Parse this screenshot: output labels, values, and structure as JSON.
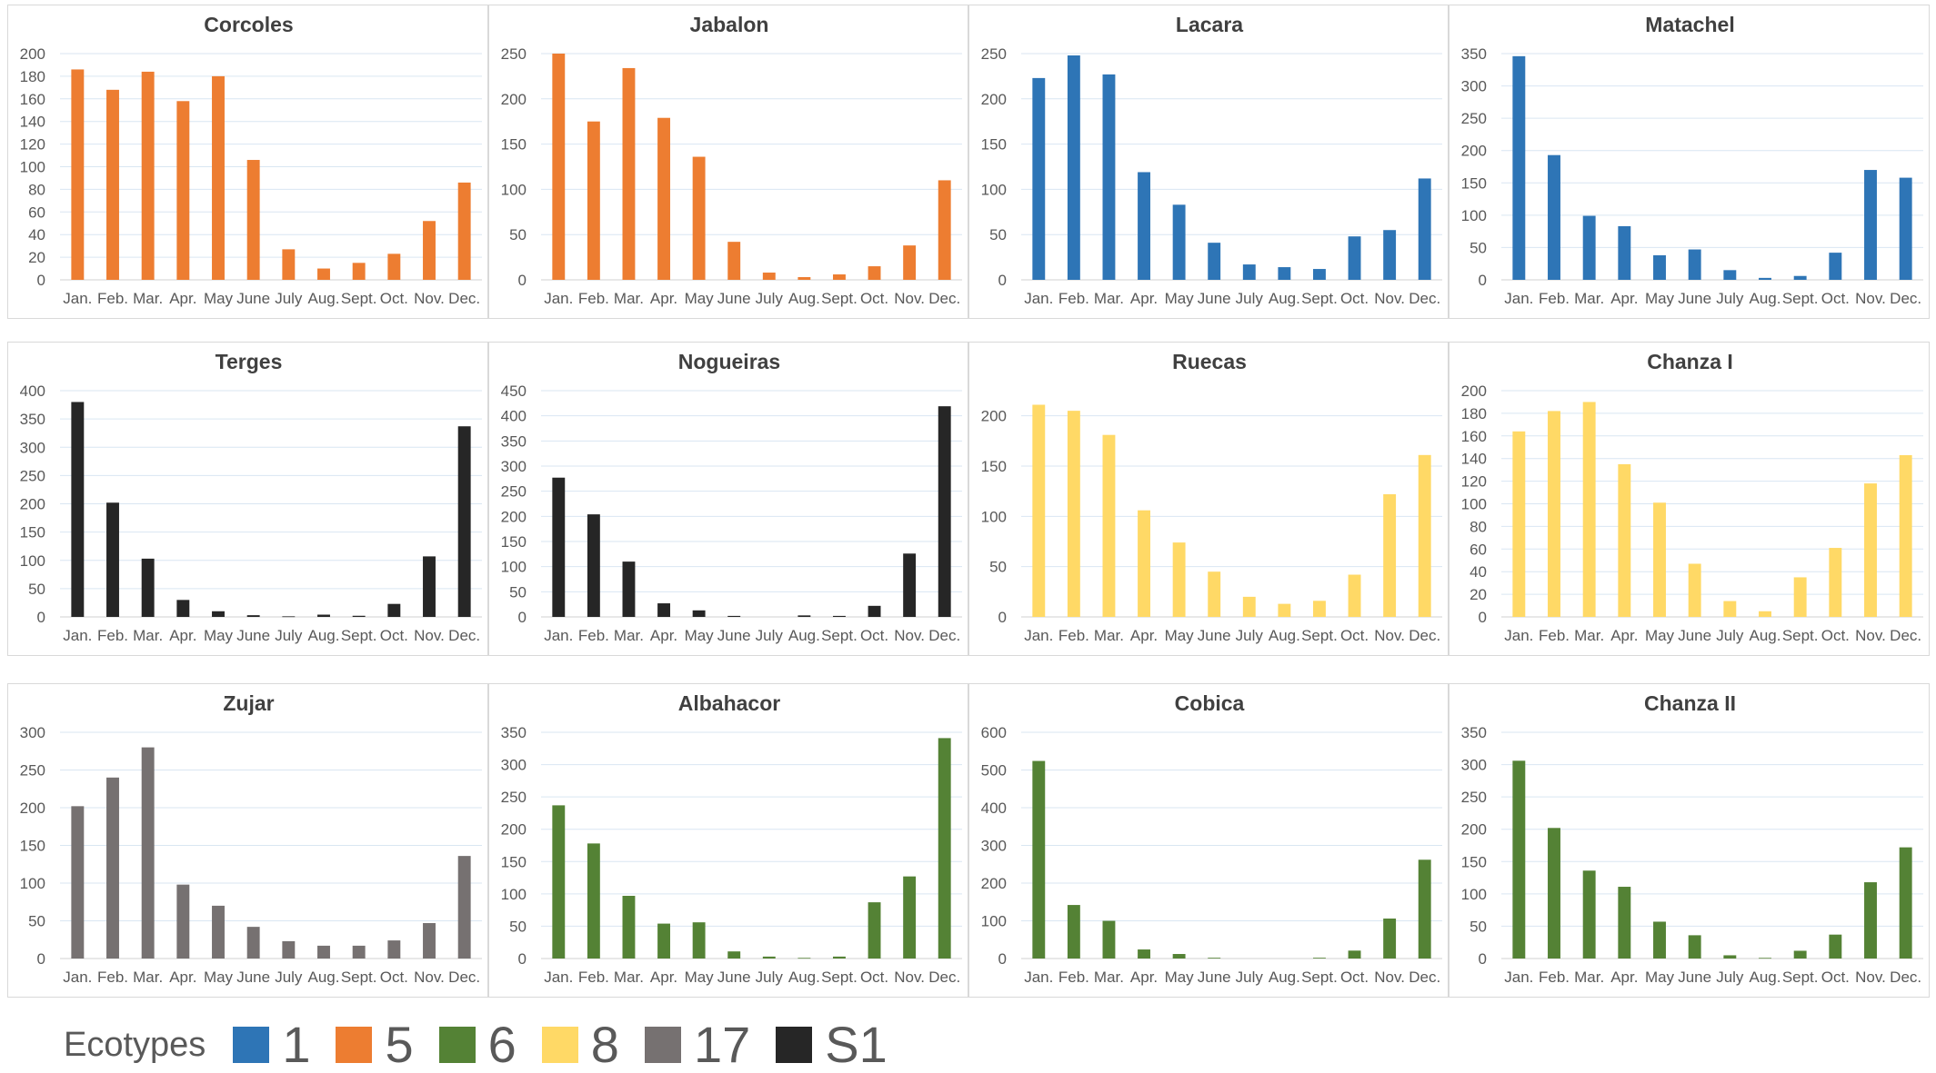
{
  "legend": {
    "title": "Ecotypes",
    "items": [
      {
        "label": "1",
        "color": "#2e75b6"
      },
      {
        "label": "5",
        "color": "#ed7d31"
      },
      {
        "label": "6",
        "color": "#548235"
      },
      {
        "label": "8",
        "color": "#ffd966"
      },
      {
        "label": "17",
        "color": "#767171"
      },
      {
        "label": "S1",
        "color": "#262626"
      }
    ]
  },
  "chart_data": [
    {
      "type": "bar",
      "title": "Corcoles",
      "color": "#ed7d31",
      "categories": [
        "Jan.",
        "Feb.",
        "Mar.",
        "Apr.",
        "May",
        "June",
        "July",
        "Aug.",
        "Sept.",
        "Oct.",
        "Nov.",
        "Dec."
      ],
      "values": [
        186,
        168,
        184,
        158,
        180,
        106,
        27,
        10,
        15,
        23,
        52,
        86
      ],
      "ylim": [
        0,
        200
      ],
      "yticks": [
        0,
        20,
        40,
        60,
        80,
        100,
        120,
        140,
        160,
        180,
        200
      ],
      "grid": true
    },
    {
      "type": "bar",
      "title": "Jabalon",
      "color": "#ed7d31",
      "categories": [
        "Jan.",
        "Feb.",
        "Mar.",
        "Apr.",
        "May",
        "June",
        "July",
        "Aug.",
        "Sept.",
        "Oct.",
        "Nov.",
        "Dec."
      ],
      "values": [
        250,
        175,
        234,
        179,
        136,
        42,
        8,
        3,
        6,
        15,
        38,
        110
      ],
      "ylim": [
        0,
        250
      ],
      "yticks": [
        0,
        50,
        100,
        150,
        200,
        250
      ],
      "grid": true
    },
    {
      "type": "bar",
      "title": "Lacara",
      "color": "#2e75b6",
      "categories": [
        "Jan.",
        "Feb.",
        "Mar.",
        "Apr.",
        "May",
        "June",
        "July",
        "Aug.",
        "Sept.",
        "Oct.",
        "Nov.",
        "Dec."
      ],
      "values": [
        223,
        248,
        227,
        119,
        83,
        41,
        17,
        14,
        12,
        48,
        55,
        112
      ],
      "ylim": [
        0,
        250
      ],
      "yticks": [
        0,
        50,
        100,
        150,
        200,
        250
      ],
      "grid": true
    },
    {
      "type": "bar",
      "title": "Matachel",
      "color": "#2e75b6",
      "categories": [
        "Jan.",
        "Feb.",
        "Mar.",
        "Apr.",
        "May",
        "June",
        "July",
        "Aug.",
        "Sept.",
        "Oct.",
        "Nov.",
        "Dec."
      ],
      "values": [
        346,
        193,
        99,
        83,
        38,
        47,
        15,
        3,
        6,
        42,
        170,
        158
      ],
      "ylim": [
        0,
        350
      ],
      "yticks": [
        0,
        50,
        100,
        150,
        200,
        250,
        300,
        350
      ],
      "grid": true
    },
    {
      "type": "bar",
      "title": "Terges",
      "color": "#262626",
      "categories": [
        "Jan.",
        "Feb.",
        "Mar.",
        "Apr.",
        "May",
        "June",
        "July",
        "Aug.",
        "Sept.",
        "Oct.",
        "Nov.",
        "Dec."
      ],
      "values": [
        380,
        202,
        103,
        30,
        10,
        3,
        1,
        4,
        2,
        23,
        107,
        337
      ],
      "ylim": [
        0,
        400
      ],
      "yticks": [
        0,
        50,
        100,
        150,
        200,
        250,
        300,
        350,
        400
      ],
      "grid": true
    },
    {
      "type": "bar",
      "title": "Nogueiras",
      "color": "#262626",
      "categories": [
        "Jan.",
        "Feb.",
        "Mar.",
        "Apr.",
        "May",
        "June",
        "July",
        "Aug.",
        "Sept.",
        "Oct.",
        "Nov.",
        "Dec."
      ],
      "values": [
        277,
        204,
        110,
        27,
        13,
        2,
        0,
        3,
        2,
        22,
        126,
        419
      ],
      "ylim": [
        0,
        450
      ],
      "yticks": [
        0,
        50,
        100,
        150,
        200,
        250,
        300,
        350,
        400,
        450
      ],
      "grid": true
    },
    {
      "type": "bar",
      "title": "Ruecas",
      "color": "#ffd966",
      "categories": [
        "Jan.",
        "Feb.",
        "Mar.",
        "Apr.",
        "May",
        "June",
        "July",
        "Aug.",
        "Sept.",
        "Oct.",
        "Nov.",
        "Dec."
      ],
      "values": [
        211,
        205,
        181,
        106,
        74,
        45,
        20,
        13,
        16,
        42,
        122,
        161
      ],
      "ylim": [
        0,
        225
      ],
      "yticks": [
        0,
        50,
        100,
        150,
        200
      ],
      "grid": true
    },
    {
      "type": "bar",
      "title": "Chanza I",
      "color": "#ffd966",
      "categories": [
        "Jan.",
        "Feb.",
        "Mar.",
        "Apr.",
        "May",
        "June",
        "July",
        "Aug.",
        "Sept.",
        "Oct.",
        "Nov.",
        "Dec."
      ],
      "values": [
        164,
        182,
        190,
        135,
        101,
        47,
        14,
        5,
        35,
        61,
        118,
        143
      ],
      "ylim": [
        0,
        200
      ],
      "yticks": [
        0,
        20,
        40,
        60,
        80,
        100,
        120,
        140,
        160,
        180,
        200
      ],
      "grid": true
    },
    {
      "type": "bar",
      "title": "Zujar",
      "color": "#767171",
      "categories": [
        "Jan.",
        "Feb.",
        "Mar.",
        "Apr.",
        "May",
        "June",
        "July",
        "Aug.",
        "Sept.",
        "Oct.",
        "Nov.",
        "Dec."
      ],
      "values": [
        202,
        240,
        280,
        98,
        70,
        42,
        23,
        17,
        17,
        24,
        47,
        136
      ],
      "ylim": [
        0,
        300
      ],
      "yticks": [
        0,
        50,
        100,
        150,
        200,
        250,
        300
      ],
      "grid": true
    },
    {
      "type": "bar",
      "title": "Albahacor",
      "color": "#548235",
      "categories": [
        "Jan.",
        "Feb.",
        "Mar.",
        "Apr.",
        "May",
        "June",
        "July",
        "Aug.",
        "Sept.",
        "Oct.",
        "Nov.",
        "Dec."
      ],
      "values": [
        237,
        178,
        97,
        54,
        56,
        11,
        3,
        1,
        3,
        87,
        127,
        341
      ],
      "ylim": [
        0,
        350
      ],
      "yticks": [
        0,
        50,
        100,
        150,
        200,
        250,
        300,
        350
      ],
      "grid": true
    },
    {
      "type": "bar",
      "title": "Cobica",
      "color": "#548235",
      "categories": [
        "Jan.",
        "Feb.",
        "Mar.",
        "Apr.",
        "May",
        "June",
        "July",
        "Aug.",
        "Sept.",
        "Oct.",
        "Nov.",
        "Dec."
      ],
      "values": [
        524,
        142,
        100,
        24,
        12,
        2,
        0,
        0,
        2,
        21,
        106,
        262
      ],
      "ylim": [
        0,
        600
      ],
      "yticks": [
        0,
        100,
        200,
        300,
        400,
        500,
        600
      ],
      "grid": true
    },
    {
      "type": "bar",
      "title": "Chanza II",
      "color": "#548235",
      "categories": [
        "Jan.",
        "Feb.",
        "Mar.",
        "Apr.",
        "May",
        "June",
        "July",
        "Aug.",
        "Sept.",
        "Oct.",
        "Nov.",
        "Dec."
      ],
      "values": [
        306,
        202,
        136,
        111,
        57,
        36,
        5,
        1,
        12,
        37,
        118,
        172
      ],
      "ylim": [
        0,
        350
      ],
      "yticks": [
        0,
        50,
        100,
        150,
        200,
        250,
        300,
        350
      ],
      "grid": true
    }
  ]
}
